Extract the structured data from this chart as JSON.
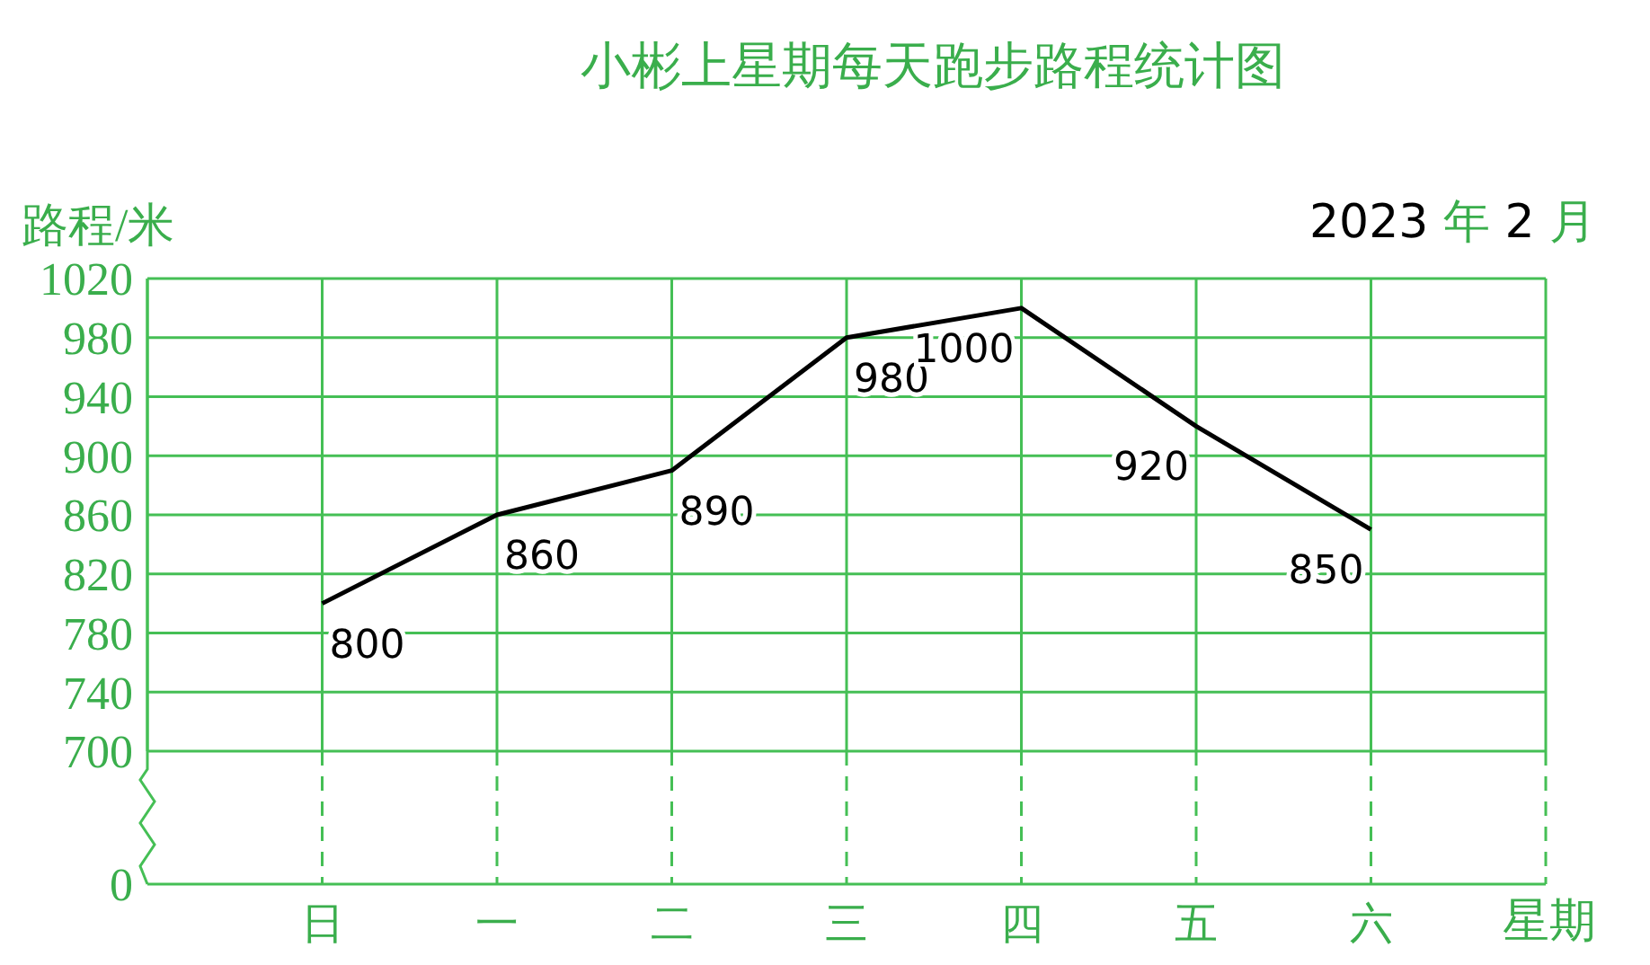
{
  "chart_data": {
    "type": "line",
    "title": "小彬上星期每天跑步路程统计图",
    "subtitle": "2023 年 2 月",
    "xlabel": "星期",
    "ylabel": "路程/米",
    "categories": [
      "日",
      "一",
      "二",
      "三",
      "四",
      "五",
      "六"
    ],
    "series": [
      {
        "color": "#000000",
        "values": [
          800,
          860,
          890,
          980,
          1000,
          920,
          850
        ]
      }
    ],
    "ylim": [
      700,
      1020
    ],
    "yticks": [
      700,
      740,
      780,
      820,
      860,
      900,
      940,
      980,
      1020
    ],
    "annotations": [
      "0"
    ],
    "grid": true,
    "marker": "none",
    "line_style": "solid",
    "data_labels": true,
    "legend": false
  }
}
